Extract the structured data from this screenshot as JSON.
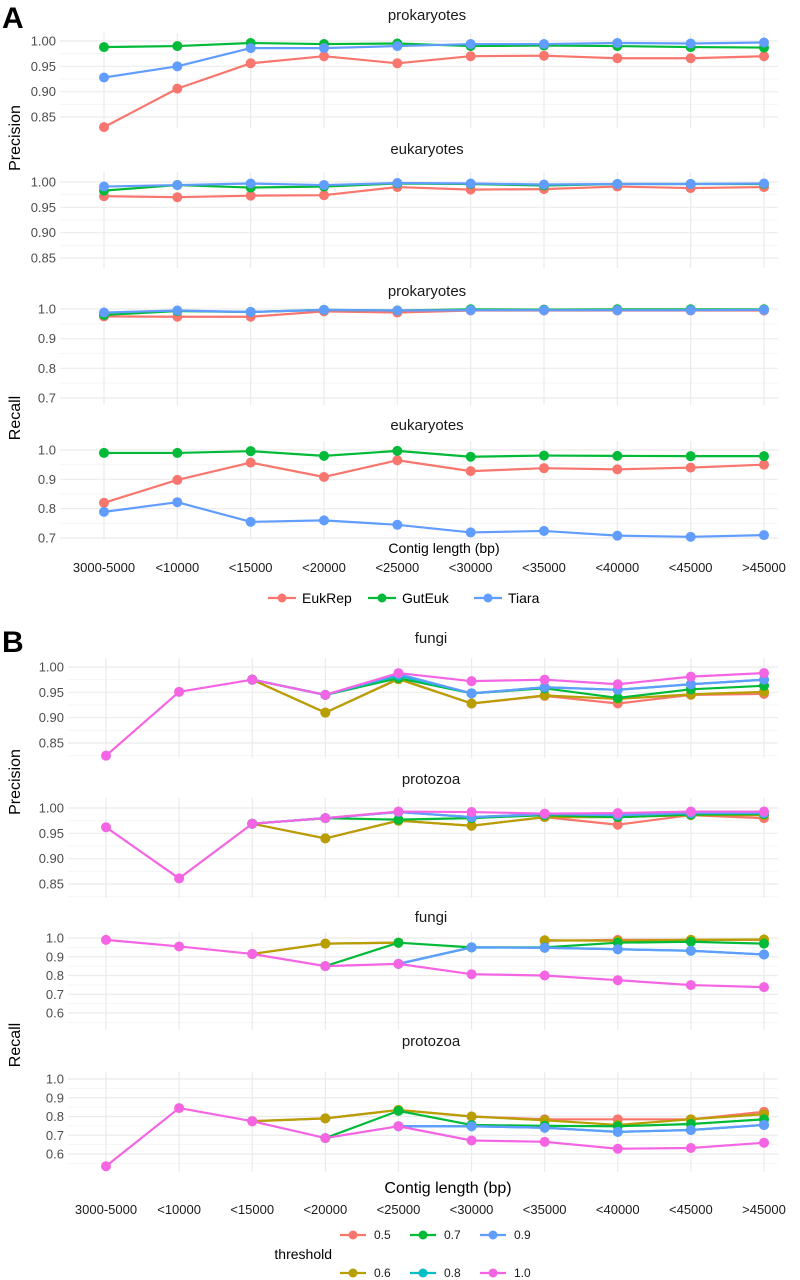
{
  "chart_data": [
    {
      "panel": "A",
      "type": "line",
      "xlabel": "Contig length (bp)",
      "categories": [
        "3000-5000",
        "<10000",
        "<15000",
        "<20000",
        "<25000",
        "<30000",
        "<35000",
        "<40000",
        "<45000",
        ">45000"
      ],
      "legend": {
        "placement": "bottom",
        "title": "",
        "entries": [
          "EukRep",
          "GutEuk",
          "Tiara"
        ]
      },
      "colors": {
        "EukRep": "#F8766D",
        "GutEuk": "#00BA38",
        "Tiara": "#619CFF"
      },
      "row_labels": [
        "Precision",
        "Recall"
      ],
      "facets": [
        {
          "title": "prokaryotes",
          "metric": "Precision",
          "ylim": [
            0.82,
            1.005
          ],
          "yticks": [
            "0.85",
            "0.90",
            "0.95",
            "1.00"
          ],
          "ytick_values": [
            0.85,
            0.9,
            0.95,
            1.0
          ],
          "series": [
            {
              "name": "EukRep",
              "values": [
                0.83,
                0.906,
                0.956,
                0.97,
                0.956,
                0.97,
                0.971,
                0.966,
                0.966,
                0.97
              ]
            },
            {
              "name": "GutEuk",
              "values": [
                0.988,
                0.99,
                0.996,
                0.994,
                0.995,
                0.99,
                0.991,
                0.99,
                0.988,
                0.987
              ]
            },
            {
              "name": "Tiara",
              "values": [
                0.928,
                0.95,
                0.986,
                0.986,
                0.99,
                0.994,
                0.994,
                0.996,
                0.995,
                0.997
              ]
            }
          ]
        },
        {
          "title": "eukaryotes",
          "metric": "Precision",
          "ylim": [
            0.82,
            1.005
          ],
          "yticks": [
            "0.85",
            "0.90",
            "0.95",
            "1.00"
          ],
          "ytick_values": [
            0.85,
            0.9,
            0.95,
            1.0
          ],
          "series": [
            {
              "name": "EukRep",
              "values": [
                0.972,
                0.97,
                0.973,
                0.974,
                0.99,
                0.985,
                0.986,
                0.991,
                0.988,
                0.99
              ]
            },
            {
              "name": "GutEuk",
              "values": [
                0.983,
                0.994,
                0.989,
                0.991,
                0.997,
                0.996,
                0.993,
                0.996,
                0.996,
                0.996
              ]
            },
            {
              "name": "Tiara",
              "values": [
                0.991,
                0.994,
                0.997,
                0.994,
                0.998,
                0.997,
                0.995,
                0.996,
                0.996,
                0.997
              ]
            }
          ]
        },
        {
          "title": "prokaryotes",
          "metric": "Recall",
          "ylim": [
            0.69,
            1.02
          ],
          "yticks": [
            "0.7",
            "0.8",
            "0.9",
            "1.0"
          ],
          "ytick_values": [
            0.7,
            0.8,
            0.9,
            1.0
          ],
          "series": [
            {
              "name": "EukRep",
              "values": [
                0.975,
                0.974,
                0.974,
                0.992,
                0.988,
                0.995,
                0.995,
                0.995,
                0.995,
                0.995
              ]
            },
            {
              "name": "GutEuk",
              "values": [
                0.98,
                0.993,
                0.99,
                0.997,
                0.995,
                0.999,
                0.998,
                0.999,
                0.999,
                0.999
              ]
            },
            {
              "name": "Tiara",
              "values": [
                0.988,
                0.995,
                0.99,
                0.997,
                0.995,
                0.996,
                0.996,
                0.996,
                0.996,
                0.997
              ]
            }
          ]
        },
        {
          "title": "eukaryotes",
          "metric": "Recall",
          "ylim": [
            0.69,
            1.02
          ],
          "yticks": [
            "0.7",
            "0.8",
            "0.9",
            "1.0"
          ],
          "ytick_values": [
            0.7,
            0.8,
            0.9,
            1.0
          ],
          "series": [
            {
              "name": "EukRep",
              "values": [
                0.82,
                0.898,
                0.957,
                0.908,
                0.965,
                0.928,
                0.938,
                0.934,
                0.94,
                0.95
              ]
            },
            {
              "name": "GutEuk",
              "values": [
                0.99,
                0.99,
                0.996,
                0.98,
                0.997,
                0.977,
                0.981,
                0.98,
                0.979,
                0.979
              ]
            },
            {
              "name": "Tiara",
              "values": [
                0.789,
                0.822,
                0.755,
                0.76,
                0.745,
                0.719,
                0.724,
                0.708,
                0.704,
                0.71
              ]
            }
          ]
        }
      ]
    },
    {
      "panel": "B",
      "type": "line",
      "xlabel": "Contig length (bp)",
      "categories": [
        "3000-5000",
        "<10000",
        "<15000",
        "<20000",
        "<25000",
        "<30000",
        "<35000",
        "<40000",
        "<45000",
        ">45000"
      ],
      "legend": {
        "placement": "bottom",
        "title": "threshold",
        "entries": [
          "0.5",
          "0.7",
          "0.9",
          "0.6",
          "0.8",
          "1.0"
        ]
      },
      "colors": {
        "0.5": "#F8766D",
        "0.6": "#B79F00",
        "0.7": "#00BA38",
        "0.8": "#00BFC4",
        "0.9": "#619CFF",
        "1.0": "#F564E3"
      },
      "row_labels": [
        "Precision",
        "Recall"
      ],
      "facets": [
        {
          "title": "fungi",
          "metric": "Precision",
          "ylim": [
            0.82,
            1.005
          ],
          "yticks": [
            "0.85",
            "0.90",
            "0.95",
            "1.00"
          ],
          "ytick_values": [
            0.85,
            0.9,
            0.95,
            1.0
          ],
          "series": [
            {
              "name": "0.5",
              "values": [
                null,
                null,
                0.975,
                0.91,
                0.977,
                0.928,
                0.943,
                0.928,
                0.945,
                0.947
              ]
            },
            {
              "name": "0.6",
              "values": [
                null,
                null,
                0.975,
                0.91,
                0.976,
                0.928,
                0.944,
                0.937,
                0.946,
                0.951
              ]
            },
            {
              "name": "0.7",
              "values": [
                null,
                null,
                0.975,
                0.945,
                0.978,
                0.948,
                0.958,
                0.939,
                0.956,
                0.963
              ]
            },
            {
              "name": "0.8",
              "values": [
                null,
                null,
                0.975,
                0.945,
                0.983,
                0.948,
                0.96,
                0.955,
                0.966,
                0.975
              ]
            },
            {
              "name": "0.9",
              "values": [
                null,
                null,
                0.975,
                0.945,
                0.986,
                0.948,
                0.96,
                0.955,
                0.966,
                0.975
              ]
            },
            {
              "name": "1.0",
              "values": [
                0.825,
                0.951,
                0.975,
                0.945,
                0.988,
                0.972,
                0.975,
                0.966,
                0.981,
                0.988
              ]
            }
          ]
        },
        {
          "title": "protozoa",
          "metric": "Precision",
          "ylim": [
            0.82,
            1.005
          ],
          "yticks": [
            "0.85",
            "0.90",
            "0.95",
            "1.00"
          ],
          "ytick_values": [
            0.85,
            0.9,
            0.95,
            1.0
          ],
          "series": [
            {
              "name": "0.5",
              "values": [
                null,
                null,
                0.969,
                0.94,
                0.975,
                0.965,
                0.982,
                0.967,
                0.986,
                0.98
              ]
            },
            {
              "name": "0.6",
              "values": [
                null,
                null,
                0.969,
                0.94,
                0.975,
                0.965,
                0.982,
                0.982,
                0.986,
                0.986
              ]
            },
            {
              "name": "0.7",
              "values": [
                null,
                null,
                0.969,
                0.98,
                0.977,
                0.98,
                0.986,
                0.982,
                0.987,
                0.988
              ]
            },
            {
              "name": "0.8",
              "values": [
                null,
                null,
                0.969,
                0.98,
                0.992,
                0.982,
                0.988,
                0.986,
                0.99,
                0.99
              ]
            },
            {
              "name": "0.9",
              "values": [
                null,
                null,
                0.969,
                0.98,
                0.992,
                0.982,
                0.988,
                0.986,
                0.99,
                0.99
              ]
            },
            {
              "name": "1.0",
              "values": [
                0.962,
                0.861,
                0.969,
                0.98,
                0.993,
                0.992,
                0.989,
                0.99,
                0.993,
                0.993
              ]
            }
          ]
        },
        {
          "title": "fungi",
          "metric": "Recall",
          "ylim": [
            0.55,
            1.03
          ],
          "yticks": [
            "0.6",
            "0.7",
            "0.8",
            "0.9",
            "1.0"
          ],
          "ytick_values": [
            0.6,
            0.7,
            0.8,
            0.9,
            1.0
          ],
          "series": [
            {
              "name": "0.5",
              "values": [
                null,
                null,
                0.915,
                0.97,
                0.975,
                null,
                0.985,
                0.99,
                0.99,
                0.99
              ]
            },
            {
              "name": "0.6",
              "values": [
                null,
                null,
                0.915,
                0.97,
                0.975,
                null,
                0.988,
                0.985,
                0.99,
                0.992
              ]
            },
            {
              "name": "0.7",
              "values": [
                null,
                null,
                null,
                0.85,
                0.975,
                0.95,
                0.95,
                0.975,
                0.98,
                0.97
              ]
            },
            {
              "name": "0.8",
              "values": [
                null,
                null,
                null,
                null,
                0.862,
                0.95,
                0.948,
                0.94,
                0.932,
                0.912
              ]
            },
            {
              "name": "0.9",
              "values": [
                null,
                null,
                null,
                null,
                0.862,
                0.95,
                0.948,
                0.94,
                0.932,
                0.912
              ]
            },
            {
              "name": "1.0",
              "values": [
                0.99,
                0.955,
                0.915,
                0.85,
                0.862,
                0.807,
                0.8,
                0.775,
                0.749,
                0.738
              ]
            }
          ]
        },
        {
          "title": "protozoa",
          "metric": "Recall",
          "ylim": [
            0.52,
            1.03
          ],
          "yticks": [
            "0.6",
            "0.7",
            "0.8",
            "0.9",
            "1.0"
          ],
          "ytick_values": [
            0.6,
            0.7,
            0.8,
            0.9,
            1.0
          ],
          "series": [
            {
              "name": "0.5",
              "values": [
                null,
                null,
                0.775,
                0.79,
                0.835,
                0.8,
                0.785,
                0.785,
                0.785,
                0.825
              ]
            },
            {
              "name": "0.6",
              "values": [
                null,
                null,
                0.775,
                0.79,
                0.835,
                0.8,
                0.78,
                0.755,
                0.785,
                0.812
              ]
            },
            {
              "name": "0.7",
              "values": [
                null,
                null,
                null,
                0.685,
                0.83,
                0.755,
                0.75,
                0.748,
                0.76,
                0.785
              ]
            },
            {
              "name": "0.8",
              "values": [
                null,
                null,
                null,
                null,
                0.748,
                0.748,
                0.74,
                0.718,
                0.728,
                0.755
              ]
            },
            {
              "name": "0.9",
              "values": [
                null,
                null,
                null,
                null,
                0.748,
                0.748,
                0.74,
                0.718,
                0.728,
                0.755
              ]
            },
            {
              "name": "1.0",
              "values": [
                0.535,
                0.845,
                0.775,
                0.685,
                0.748,
                0.672,
                0.665,
                0.628,
                0.632,
                0.66
              ]
            }
          ]
        }
      ]
    }
  ]
}
